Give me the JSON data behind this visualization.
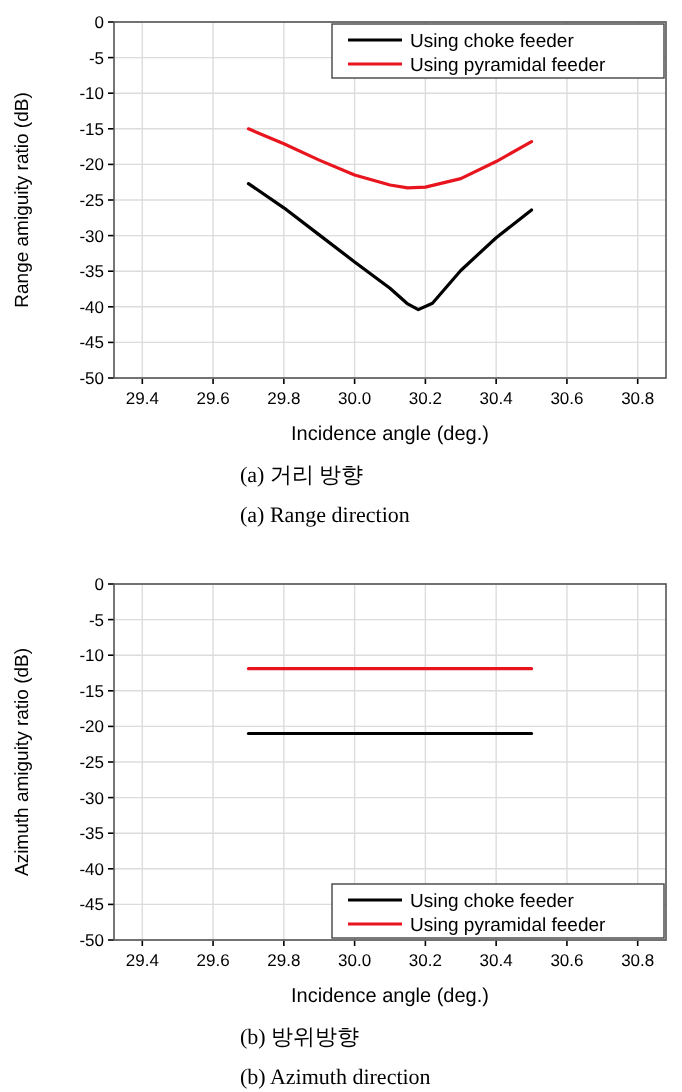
{
  "chart_data": [
    {
      "type": "line",
      "xlabel": "Incidence angle (deg.)",
      "ylabel": "Range amiguity ratio (dB)",
      "xlim": [
        29.32,
        30.88
      ],
      "ylim": [
        -50,
        0
      ],
      "xticks": [
        29.4,
        29.6,
        29.8,
        {
          "value": 30,
          "label": "30.0"
        },
        30.2,
        30.4,
        30.6,
        30.8
      ],
      "yticks": [
        -50,
        -45,
        -40,
        -35,
        -30,
        -25,
        -20,
        -15,
        -10,
        -5,
        0
      ],
      "grid": true,
      "legend": "top right",
      "series": [
        {
          "name": "Using choke feeder",
          "color": "#000000",
          "x": [
            29.7,
            29.8,
            29.9,
            30.0,
            30.1,
            30.15,
            30.18,
            30.22,
            30.3,
            30.4,
            30.5
          ],
          "values": [
            -22.7,
            -26.1,
            -29.9,
            -33.7,
            -37.4,
            -39.6,
            -40.4,
            -39.5,
            -34.9,
            -30.3,
            -26.4
          ]
        },
        {
          "name": "Using pyramidal feeder",
          "color": "#e8141e",
          "x": [
            29.7,
            29.8,
            29.9,
            30.0,
            30.1,
            30.15,
            30.2,
            30.3,
            30.4,
            30.5
          ],
          "values": [
            -15.0,
            -17.1,
            -19.4,
            -21.5,
            -22.9,
            -23.3,
            -23.2,
            -22.0,
            -19.6,
            -16.8
          ]
        }
      ],
      "annotations": [
        "(a) 거리 방향",
        "(a) Range direction"
      ]
    },
    {
      "type": "line",
      "xlabel": "Incidence angle (deg.)",
      "ylabel": "Azimuth amiguity ratio (dB)",
      "xlim": [
        29.32,
        30.88
      ],
      "ylim": [
        -50,
        0
      ],
      "xticks": [
        29.4,
        29.6,
        29.8,
        {
          "value": 30,
          "label": "30.0"
        },
        30.2,
        30.4,
        30.6,
        30.8
      ],
      "yticks": [
        -50,
        -45,
        -40,
        -35,
        -30,
        -25,
        -20,
        -15,
        -10,
        -5,
        0
      ],
      "grid": true,
      "legend": "bottom right",
      "series": [
        {
          "name": "Using choke feeder",
          "color": "#000000",
          "x": [
            29.7,
            30.5
          ],
          "values": [
            -21.0,
            -21.0
          ]
        },
        {
          "name": "Using pyramidal feeder",
          "color": "#e8141e",
          "x": [
            29.7,
            30.5
          ],
          "values": [
            -11.9,
            -11.9
          ]
        }
      ],
      "annotations": [
        "(b) 방위방향",
        "(b) Azimuth direction"
      ]
    }
  ]
}
